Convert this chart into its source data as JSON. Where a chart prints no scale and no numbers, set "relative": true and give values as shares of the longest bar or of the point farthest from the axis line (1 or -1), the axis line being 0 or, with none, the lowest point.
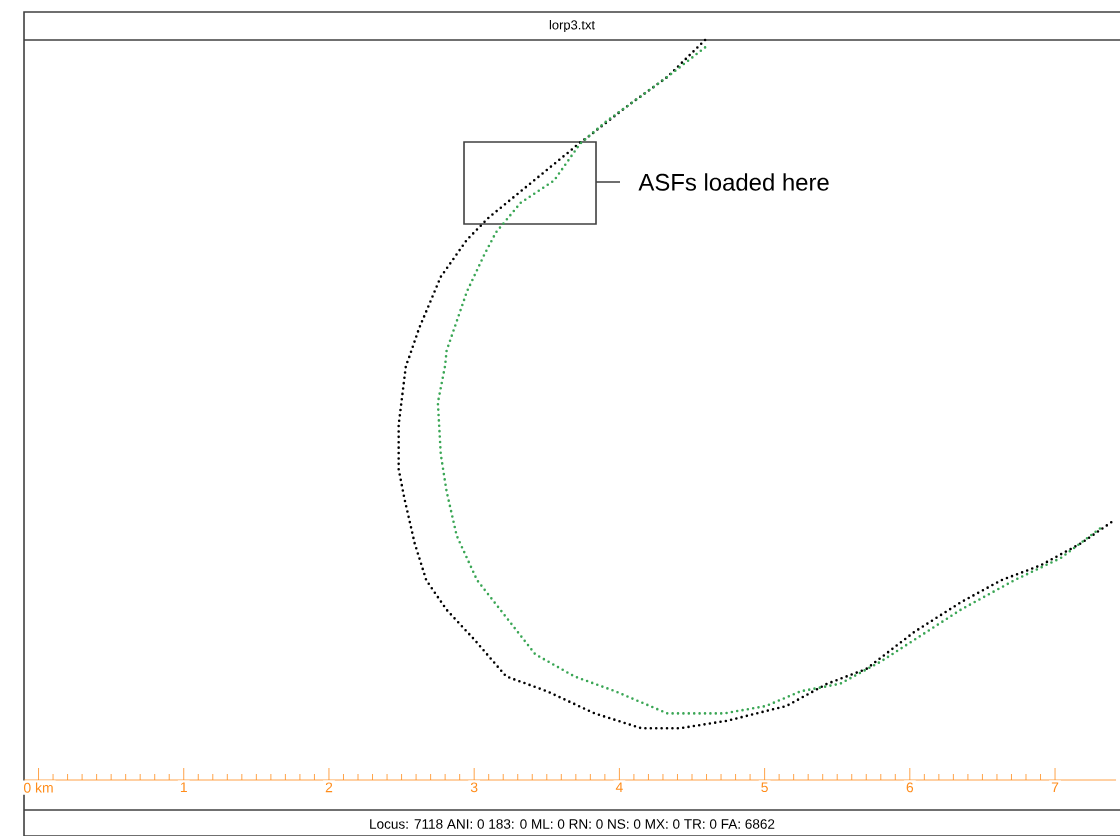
{
  "chart_data": {
    "type": "line",
    "title": "lorp3.txt",
    "relative": true,
    "line_style": "dotted",
    "xlim": [
      -0.1,
      7.42
    ],
    "xticks": [
      {
        "value": 0,
        "label": "0 km"
      },
      1,
      2,
      3,
      4,
      5,
      6,
      7
    ],
    "series": [
      {
        "color": "#000000",
        "x": [
          4.59,
          4.33,
          4.05,
          3.79,
          3.72,
          3.66,
          3.1,
          2.95,
          2.77,
          2.62,
          2.55,
          2.53,
          2.48,
          2.48,
          2.52,
          2.59,
          2.67,
          2.81,
          3.0,
          3.22,
          3.5,
          3.83,
          4.15,
          4.42,
          4.74,
          5.15,
          5.43,
          5.7,
          6.03,
          6.35,
          6.63,
          6.9,
          7.18,
          7.4
        ],
        "values": [
          1.0,
          0.95,
          0.91,
          0.87,
          0.86,
          0.85,
          0.76,
          0.73,
          0.68,
          0.61,
          0.57,
          0.56,
          0.48,
          0.42,
          0.38,
          0.32,
          0.27,
          0.23,
          0.19,
          0.14,
          0.12,
          0.09,
          0.07,
          0.07,
          0.08,
          0.1,
          0.13,
          0.15,
          0.2,
          0.24,
          0.27,
          0.29,
          0.32,
          0.35
        ]
      },
      {
        "color": "#3aa655",
        "x": [
          4.59,
          4.33,
          3.91,
          3.73,
          3.55,
          3.32,
          3.15,
          3.07,
          2.95,
          2.81,
          2.8,
          2.75,
          2.77,
          2.81,
          2.88,
          3.02,
          3.18,
          3.42,
          3.69,
          3.97,
          4.33,
          4.72,
          5.01,
          5.25,
          5.52,
          5.8,
          6.35,
          6.72,
          7.04,
          7.31
        ],
        "values": [
          0.99,
          0.95,
          0.89,
          0.86,
          0.81,
          0.78,
          0.74,
          0.71,
          0.66,
          0.58,
          0.56,
          0.51,
          0.44,
          0.39,
          0.33,
          0.27,
          0.23,
          0.17,
          0.14,
          0.12,
          0.09,
          0.09,
          0.1,
          0.12,
          0.13,
          0.16,
          0.23,
          0.27,
          0.3,
          0.34
        ]
      }
    ],
    "annotations": [
      "ASFs loaded here",
      "Locus: 7118 ANI: 0 183: 0 ML: 0 RN: 0 NS: 0 MX: 0 TR: 0 FA: 6862"
    ]
  }
}
